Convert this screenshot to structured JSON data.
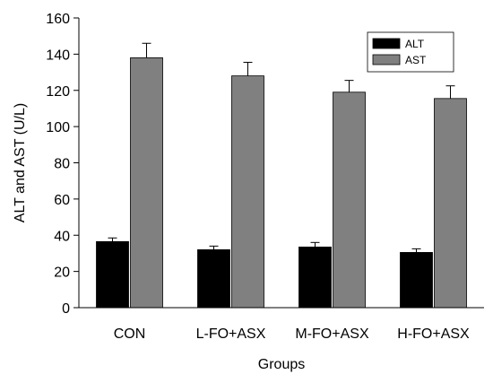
{
  "chart_data": {
    "type": "bar",
    "title": "",
    "xlabel": "Groups",
    "ylabel": "ALT and AST (U/L)",
    "ylim": [
      0,
      160
    ],
    "yticks": [
      0,
      20,
      40,
      60,
      80,
      100,
      120,
      140,
      160
    ],
    "categories": [
      "CON",
      "L-FO+ASX",
      "M-FO+ASX",
      "H-FO+ASX"
    ],
    "series": [
      {
        "name": "ALT",
        "color": "#000000",
        "values": [
          36.5,
          32,
          33.5,
          30.5
        ],
        "errors": [
          2,
          2,
          2.5,
          2
        ]
      },
      {
        "name": "AST",
        "color": "#808080",
        "values": [
          138,
          128,
          119,
          115.5
        ],
        "errors": [
          8,
          7.5,
          6.5,
          7
        ]
      }
    ],
    "grid": false,
    "legend_position": "top-right"
  }
}
